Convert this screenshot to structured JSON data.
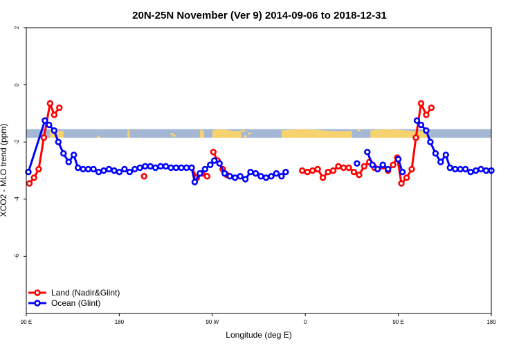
{
  "chart_data": {
    "type": "line",
    "title": "20N-25N November (Ver 9)   2014-09-06 to 2018-12-31",
    "xlabel": "Longitude (deg E)",
    "ylabel": "XCO2 - MLO trend (ppm)",
    "xlim": [
      90,
      540
    ],
    "ylim": [
      -8,
      2
    ],
    "x_ticks": [
      {
        "value": 90,
        "label": "90 E"
      },
      {
        "value": 180,
        "label": "180"
      },
      {
        "value": 270,
        "label": "90 W"
      },
      {
        "value": 360,
        "label": "0"
      },
      {
        "value": 450,
        "label": "90 E"
      },
      {
        "value": 540,
        "label": "180"
      }
    ],
    "y_ticks": [
      {
        "value": 2,
        "label": "2"
      },
      {
        "value": 0,
        "label": "0"
      },
      {
        "value": -2,
        "label": "-2"
      },
      {
        "value": -4,
        "label": "-4"
      },
      {
        "value": -6,
        "label": "-6"
      }
    ],
    "grid": false,
    "legend_position": "bottom-left",
    "map_band": {
      "y_range": [
        -1.55,
        -1.85
      ],
      "ocean_color": "#a4b8d6",
      "land_color": "#f6d36e"
    },
    "series": [
      {
        "name": "Land (Nadir&Glint)",
        "color": "#ff0000",
        "segments": [
          [
            [
              93,
              -3.45
            ],
            [
              97.5,
              -3.25
            ],
            [
              102,
              -2.95
            ],
            [
              107,
              -1.85
            ],
            [
              113,
              -0.65
            ],
            [
              117,
              -1.05
            ],
            [
              122,
              -0.8
            ]
          ],
          [
            [
              204,
              -3.2
            ]
          ],
          [
            [
              250,
              -2.9
            ],
            [
              255,
              -3.25
            ],
            [
              260,
              -3.1
            ],
            [
              265,
              -3.2
            ]
          ],
          [
            [
              271,
              -2.35
            ],
            [
              275,
              -2.65
            ],
            [
              280,
              -2.95
            ],
            [
              284,
              -3.15
            ]
          ],
          [
            [
              357,
              -3.0
            ],
            [
              362,
              -3.05
            ],
            [
              367,
              -3.0
            ],
            [
              372,
              -2.95
            ],
            [
              377,
              -3.25
            ],
            [
              382,
              -3.05
            ],
            [
              387,
              -3.0
            ],
            [
              392,
              -2.85
            ],
            [
              397,
              -2.9
            ],
            [
              402,
              -2.9
            ],
            [
              407,
              -3.05
            ],
            [
              412,
              -3.15
            ],
            [
              417,
              -2.85
            ],
            [
              422,
              -2.7
            ],
            [
              427,
              -2.9
            ]
          ],
          [
            [
              435,
              -2.85
            ],
            [
              440,
              -3.0
            ],
            [
              445,
              -2.8
            ],
            [
              449,
              -2.55
            ],
            [
              453,
              -3.45
            ],
            [
              458,
              -3.25
            ],
            [
              463,
              -2.95
            ],
            [
              467,
              -1.85
            ],
            [
              472,
              -0.65
            ],
            [
              477,
              -1.05
            ],
            [
              482,
              -0.8
            ]
          ]
        ]
      },
      {
        "name": "Ocean (Glint)",
        "color": "#0000ff",
        "segments": [
          [
            [
              92,
              -3.05
            ],
            [
              108,
              -1.25
            ],
            [
              112,
              -1.4
            ],
            [
              117,
              -1.6
            ],
            [
              121,
              -2.0
            ],
            [
              126,
              -2.4
            ],
            [
              131,
              -2.7
            ],
            [
              136,
              -2.45
            ],
            [
              140,
              -2.9
            ],
            [
              145,
              -2.95
            ],
            [
              150,
              -2.95
            ],
            [
              155,
              -2.95
            ],
            [
              160,
              -3.05
            ],
            [
              165,
              -3.0
            ],
            [
              170,
              -2.95
            ],
            [
              175,
              -3.0
            ],
            [
              180,
              -3.05
            ],
            [
              185,
              -2.95
            ],
            [
              190,
              -3.05
            ],
            [
              195,
              -2.95
            ],
            [
              200,
              -2.9
            ],
            [
              205,
              -2.85
            ],
            [
              210,
              -2.85
            ],
            [
              215,
              -2.9
            ],
            [
              220,
              -2.85
            ],
            [
              225,
              -2.85
            ],
            [
              230,
              -2.9
            ],
            [
              235,
              -2.9
            ],
            [
              240,
              -2.9
            ],
            [
              245,
              -2.9
            ],
            [
              250,
              -2.9
            ],
            [
              253,
              -3.4
            ],
            [
              258,
              -3.1
            ],
            [
              263,
              -2.95
            ],
            [
              268,
              -2.8
            ],
            [
              272,
              -2.65
            ],
            [
              277,
              -2.75
            ],
            [
              282,
              -3.1
            ],
            [
              287,
              -3.2
            ],
            [
              292,
              -3.25
            ],
            [
              297,
              -3.2
            ],
            [
              302,
              -3.3
            ],
            [
              307,
              -3.05
            ],
            [
              312,
              -3.1
            ],
            [
              317,
              -3.2
            ],
            [
              322,
              -3.25
            ],
            [
              327,
              -3.2
            ],
            [
              332,
              -3.1
            ],
            [
              337,
              -3.2
            ],
            [
              341,
              -3.05
            ]
          ],
          [
            [
              410,
              -2.75
            ]
          ],
          [
            [
              420,
              -2.35
            ],
            [
              425,
              -2.8
            ],
            [
              430,
              -2.95
            ],
            [
              435,
              -2.8
            ],
            [
              440,
              -2.95
            ]
          ],
          [
            [
              450,
              -2.6
            ],
            [
              454,
              -3.05
            ]
          ],
          [
            [
              468,
              -1.25
            ],
            [
              472,
              -1.4
            ],
            [
              477,
              -1.6
            ],
            [
              481,
              -2.0
            ],
            [
              486,
              -2.4
            ],
            [
              491,
              -2.7
            ],
            [
              496,
              -2.45
            ],
            [
              500,
              -2.9
            ],
            [
              505,
              -2.95
            ],
            [
              510,
              -2.95
            ],
            [
              515,
              -2.95
            ],
            [
              520,
              -3.05
            ],
            [
              525,
              -3.0
            ],
            [
              530,
              -2.95
            ],
            [
              535,
              -3.0
            ],
            [
              540,
              -3.0
            ]
          ]
        ]
      }
    ]
  }
}
